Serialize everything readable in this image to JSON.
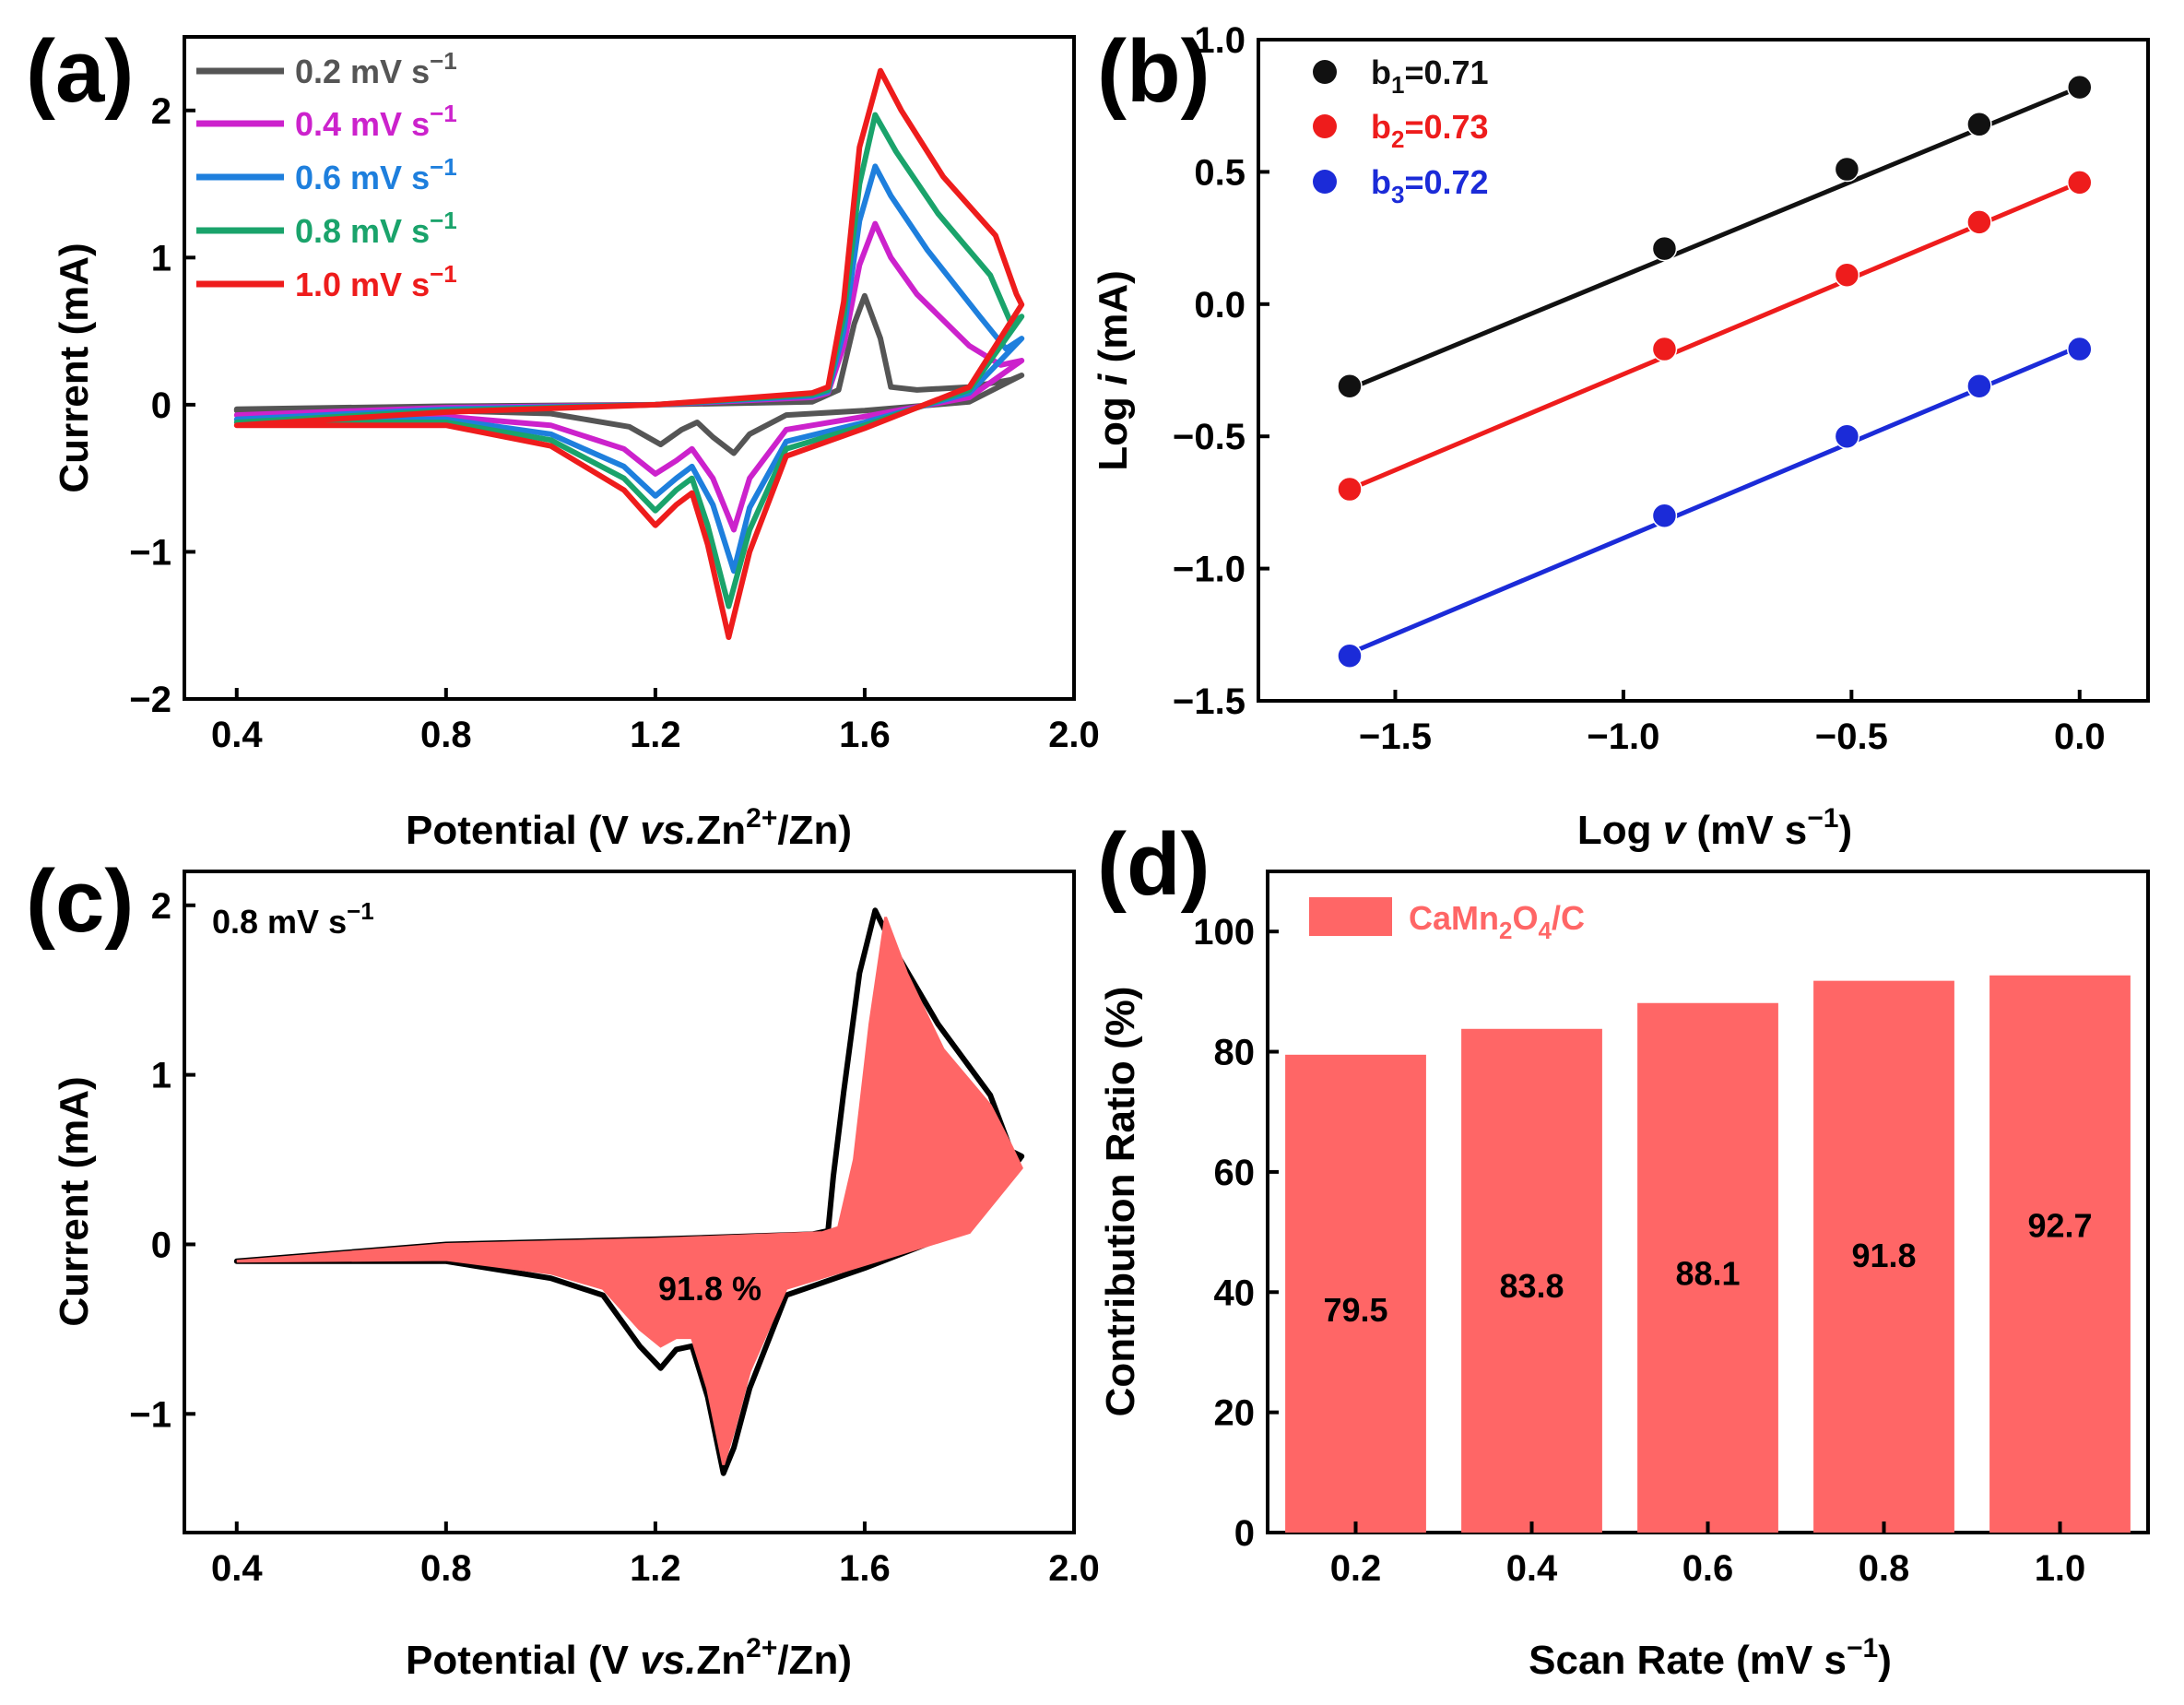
{
  "colors": {
    "s02": "#555555",
    "s04": "#cc22cc",
    "s06": "#1e7fdd",
    "s08": "#1aa36b",
    "s10": "#ee1c1c",
    "b_black": "#111111",
    "b_red": "#ee1c1c",
    "b_blue": "#1b2bd8",
    "bar": "#ff6666",
    "legend_text": "#ff6666"
  },
  "panels": {
    "a": {
      "label": "(a)"
    },
    "b": {
      "label": "(b)"
    },
    "c": {
      "label": "(c)"
    },
    "d": {
      "label": "(d)"
    }
  },
  "chart_data": [
    {
      "id": "a",
      "type": "line",
      "title": "",
      "xlabel": "Potential (V vs.Zn2+/Zn)",
      "xlabel_parts": {
        "pre": "Potential (V ",
        "italic": "vs.",
        "mid": "Zn",
        "sup": "2+",
        "post": "/Zn)"
      },
      "ylabel": "Current (mA)",
      "xlim": [
        0.3,
        2.0
      ],
      "ylim": [
        -2.0,
        2.5
      ],
      "xticks": [
        0.4,
        0.8,
        1.2,
        1.6,
        2.0
      ],
      "xtick_labels": [
        "0.4",
        "0.8",
        "1.2",
        "1.6",
        "2.0"
      ],
      "yticks": [
        -2,
        -1,
        0,
        1,
        2
      ],
      "ytick_labels": [
        "−2",
        "−1",
        "0",
        "1",
        "2"
      ],
      "legend_position": "top-left",
      "series": [
        {
          "name": "0.2 mV s−1",
          "label_main": "0.2 mV s",
          "label_sup": "−1",
          "color_key": "s02",
          "x_anodic": [
            0.4,
            0.8,
            1.2,
            1.5,
            1.55,
            1.58,
            1.6,
            1.63,
            1.65,
            1.7,
            1.8,
            1.88,
            1.9
          ],
          "y_anodic": [
            -0.03,
            -0.01,
            0.0,
            0.02,
            0.1,
            0.55,
            0.74,
            0.45,
            0.12,
            0.1,
            0.12,
            0.17,
            0.2
          ],
          "x_cathodic": [
            1.9,
            1.8,
            1.6,
            1.45,
            1.38,
            1.35,
            1.31,
            1.28,
            1.25,
            1.21,
            1.15,
            1.0,
            0.8,
            0.4
          ],
          "y_cathodic": [
            0.2,
            0.02,
            -0.04,
            -0.07,
            -0.2,
            -0.33,
            -0.22,
            -0.12,
            -0.17,
            -0.27,
            -0.15,
            -0.06,
            -0.04,
            -0.04
          ]
        },
        {
          "name": "0.4 mV s−1",
          "label_main": "0.4 mV s",
          "label_sup": "−1",
          "color_key": "s04",
          "x_anodic": [
            0.4,
            0.8,
            1.2,
            1.5,
            1.53,
            1.56,
            1.59,
            1.62,
            1.65,
            1.7,
            1.8,
            1.86,
            1.9
          ],
          "y_anodic": [
            -0.07,
            -0.02,
            0.0,
            0.05,
            0.08,
            0.4,
            0.95,
            1.23,
            1.0,
            0.75,
            0.4,
            0.27,
            0.3
          ],
          "x_cathodic": [
            1.9,
            1.8,
            1.6,
            1.45,
            1.38,
            1.35,
            1.31,
            1.27,
            1.24,
            1.2,
            1.14,
            1.0,
            0.8,
            0.4
          ],
          "y_cathodic": [
            0.3,
            0.05,
            -0.08,
            -0.17,
            -0.5,
            -0.85,
            -0.5,
            -0.3,
            -0.38,
            -0.47,
            -0.3,
            -0.14,
            -0.08,
            -0.07
          ]
        },
        {
          "name": "0.6 mV s−1",
          "label_main": "0.6 mV s",
          "label_sup": "−1",
          "color_key": "s06",
          "x_anodic": [
            0.4,
            0.8,
            1.2,
            1.5,
            1.53,
            1.56,
            1.59,
            1.62,
            1.65,
            1.72,
            1.82,
            1.87,
            1.9
          ],
          "y_anodic": [
            -0.1,
            -0.03,
            0.0,
            0.06,
            0.09,
            0.5,
            1.25,
            1.62,
            1.42,
            1.05,
            0.6,
            0.38,
            0.45
          ],
          "x_cathodic": [
            1.9,
            1.8,
            1.6,
            1.45,
            1.38,
            1.35,
            1.31,
            1.27,
            1.24,
            1.2,
            1.14,
            1.0,
            0.8,
            0.4
          ],
          "y_cathodic": [
            0.45,
            0.08,
            -0.12,
            -0.25,
            -0.7,
            -1.13,
            -0.68,
            -0.42,
            -0.5,
            -0.62,
            -0.42,
            -0.2,
            -0.1,
            -0.1
          ]
        },
        {
          "name": "0.8 mV s−1",
          "label_main": "0.8 mV s",
          "label_sup": "−1",
          "color_key": "s08",
          "x_anodic": [
            0.4,
            0.8,
            1.2,
            1.5,
            1.53,
            1.56,
            1.59,
            1.62,
            1.66,
            1.74,
            1.84,
            1.88,
            1.9
          ],
          "y_anodic": [
            -0.12,
            -0.04,
            0.0,
            0.07,
            0.1,
            0.6,
            1.5,
            1.97,
            1.72,
            1.3,
            0.88,
            0.55,
            0.6
          ],
          "x_cathodic": [
            1.9,
            1.8,
            1.6,
            1.45,
            1.38,
            1.34,
            1.3,
            1.27,
            1.24,
            1.2,
            1.14,
            1.0,
            0.8,
            0.4
          ],
          "y_cathodic": [
            0.6,
            0.1,
            -0.14,
            -0.3,
            -0.85,
            -1.37,
            -0.82,
            -0.5,
            -0.58,
            -0.72,
            -0.5,
            -0.24,
            -0.12,
            -0.12
          ]
        },
        {
          "name": "1.0 mV s−1",
          "label_main": "1.0 mV s",
          "label_sup": "−1",
          "color_key": "s10",
          "x_anodic": [
            0.4,
            0.8,
            1.2,
            1.5,
            1.53,
            1.56,
            1.59,
            1.63,
            1.67,
            1.75,
            1.85,
            1.89,
            1.9
          ],
          "y_anodic": [
            -0.14,
            -0.05,
            0.0,
            0.08,
            0.12,
            0.7,
            1.75,
            2.27,
            2.0,
            1.55,
            1.15,
            0.75,
            0.68
          ],
          "x_cathodic": [
            1.9,
            1.8,
            1.6,
            1.45,
            1.38,
            1.34,
            1.3,
            1.27,
            1.24,
            1.2,
            1.14,
            1.0,
            0.8,
            0.4
          ],
          "y_cathodic": [
            0.68,
            0.12,
            -0.16,
            -0.35,
            -1.0,
            -1.58,
            -0.95,
            -0.6,
            -0.68,
            -0.82,
            -0.58,
            -0.28,
            -0.14,
            -0.14
          ]
        }
      ]
    },
    {
      "id": "b",
      "type": "scatter",
      "title": "",
      "xlabel": "Log v (mV s−1)",
      "xlabel_parts": {
        "pre": "Log ",
        "italic": "v",
        "post": " (mV s",
        "sup": "−1",
        "end": ")"
      },
      "ylabel": "Log i (mA)",
      "ylabel_parts": {
        "pre": "Log ",
        "italic": "i",
        "post": " (mA)"
      },
      "xlim": [
        -1.8,
        0.15
      ],
      "ylim": [
        -1.5,
        1.0
      ],
      "xticks": [
        -1.5,
        -1.0,
        -0.5,
        0.0
      ],
      "xtick_labels": [
        "−1.5",
        "−1.0",
        "−0.5",
        "0.0"
      ],
      "yticks": [
        -1.5,
        -1.0,
        -0.5,
        0.0,
        0.5,
        1.0
      ],
      "ytick_labels": [
        "−1.5",
        "−1.0",
        "−0.5",
        "0.0",
        "0.5",
        "1.0"
      ],
      "legend_position": "top-left",
      "x": [
        -1.6,
        -0.91,
        -0.51,
        -0.22,
        0.0
      ],
      "series": [
        {
          "name": "b1=0.71",
          "label_pre": "b",
          "label_sub": "1",
          "label_post": "=0.71",
          "color_key": "b_black",
          "values": [
            -0.31,
            0.21,
            0.51,
            0.68,
            0.82
          ],
          "fit": [
            -0.32,
            0.82
          ]
        },
        {
          "name": "b2=0.73",
          "label_pre": "b",
          "label_sub": "2",
          "label_post": "=0.73",
          "color_key": "b_red",
          "values": [
            -0.7,
            -0.17,
            0.11,
            0.31,
            0.46
          ],
          "fit": [
            -0.7,
            0.46
          ]
        },
        {
          "name": "b3=0.72",
          "label_pre": "b",
          "label_sub": "3",
          "label_post": "=0.72",
          "color_key": "b_blue",
          "values": [
            -1.33,
            -0.8,
            -0.5,
            -0.31,
            -0.17
          ],
          "fit": [
            -1.32,
            -0.16
          ]
        }
      ]
    },
    {
      "id": "c",
      "type": "area",
      "title": "",
      "xlabel": "Potential (V vs.Zn2+/Zn)",
      "xlabel_parts": {
        "pre": "Potential (V ",
        "italic": "vs.",
        "mid": "Zn",
        "sup": "2+",
        "post": "/Zn)"
      },
      "ylabel": "Current (mA)",
      "xlim": [
        0.3,
        2.0
      ],
      "ylim": [
        -1.7,
        2.2
      ],
      "xticks": [
        0.4,
        0.8,
        1.2,
        1.6,
        2.0
      ],
      "xtick_labels": [
        "0.4",
        "0.8",
        "1.2",
        "1.6",
        "2.0"
      ],
      "yticks": [
        -1,
        0,
        1,
        2
      ],
      "ytick_labels": [
        "−1",
        "0",
        "1",
        "2"
      ],
      "rate_label": {
        "main": "0.8 mV s",
        "sup": "−1"
      },
      "annotation": "91.8 %",
      "total_curve": {
        "x_anodic": [
          0.4,
          0.8,
          1.2,
          1.5,
          1.53,
          1.54,
          1.56,
          1.59,
          1.62,
          1.66,
          1.74,
          1.84,
          1.88,
          1.9
        ],
        "y_anodic": [
          -0.1,
          0.0,
          0.03,
          0.06,
          0.08,
          0.4,
          0.9,
          1.6,
          1.97,
          1.72,
          1.3,
          0.88,
          0.55,
          0.52
        ],
        "x_cathodic": [
          1.9,
          1.8,
          1.6,
          1.45,
          1.38,
          1.35,
          1.33,
          1.3,
          1.27,
          1.24,
          1.21,
          1.17,
          1.1,
          1.0,
          0.8,
          0.4
        ],
        "y_cathodic": [
          0.52,
          0.1,
          -0.14,
          -0.3,
          -0.85,
          -1.2,
          -1.35,
          -0.9,
          -0.6,
          -0.62,
          -0.73,
          -0.6,
          -0.3,
          -0.2,
          -0.1,
          -0.1
        ]
      },
      "capacitive_curve": {
        "x_anodic": [
          0.4,
          0.8,
          1.2,
          1.52,
          1.55,
          1.58,
          1.61,
          1.64,
          1.68,
          1.75,
          1.84,
          1.88,
          1.9
        ],
        "y_anodic": [
          -0.1,
          0.0,
          0.03,
          0.07,
          0.1,
          0.5,
          1.3,
          1.93,
          1.6,
          1.15,
          0.82,
          0.58,
          0.45
        ],
        "x_cathodic": [
          1.9,
          1.8,
          1.6,
          1.45,
          1.38,
          1.35,
          1.33,
          1.3,
          1.27,
          1.24,
          1.21,
          1.17,
          1.1,
          1.0,
          0.8,
          0.4
        ],
        "y_cathodic": [
          0.45,
          0.07,
          -0.12,
          -0.26,
          -0.75,
          -1.1,
          -1.3,
          -0.85,
          -0.55,
          -0.55,
          -0.6,
          -0.5,
          -0.26,
          -0.17,
          -0.09,
          -0.1
        ]
      }
    },
    {
      "id": "d",
      "type": "bar",
      "title": "",
      "xlabel": "Scan Rate (mV s−1)",
      "xlabel_parts": {
        "pre": "Scan Rate (mV s",
        "sup": "−1",
        "post": ")"
      },
      "ylabel": "Contribution Ratio (%)",
      "ylim": [
        0,
        110
      ],
      "yticks": [
        0,
        20,
        40,
        60,
        80,
        100
      ],
      "ytick_labels": [
        "0",
        "20",
        "40",
        "60",
        "80",
        "100"
      ],
      "categories": [
        "0.2",
        "0.4",
        "0.6",
        "0.8",
        "1.0"
      ],
      "values": [
        79.5,
        83.8,
        88.1,
        91.8,
        92.7
      ],
      "value_labels": [
        "79.5",
        "83.8",
        "88.1",
        "91.8",
        "92.7"
      ],
      "label_y": [
        37,
        41,
        43,
        46,
        51
      ],
      "legend_position": "top-left",
      "legend": {
        "pre": "CaMn",
        "sub1": "2",
        "mid": "O",
        "sub2": "4",
        "post": "/C"
      }
    }
  ]
}
